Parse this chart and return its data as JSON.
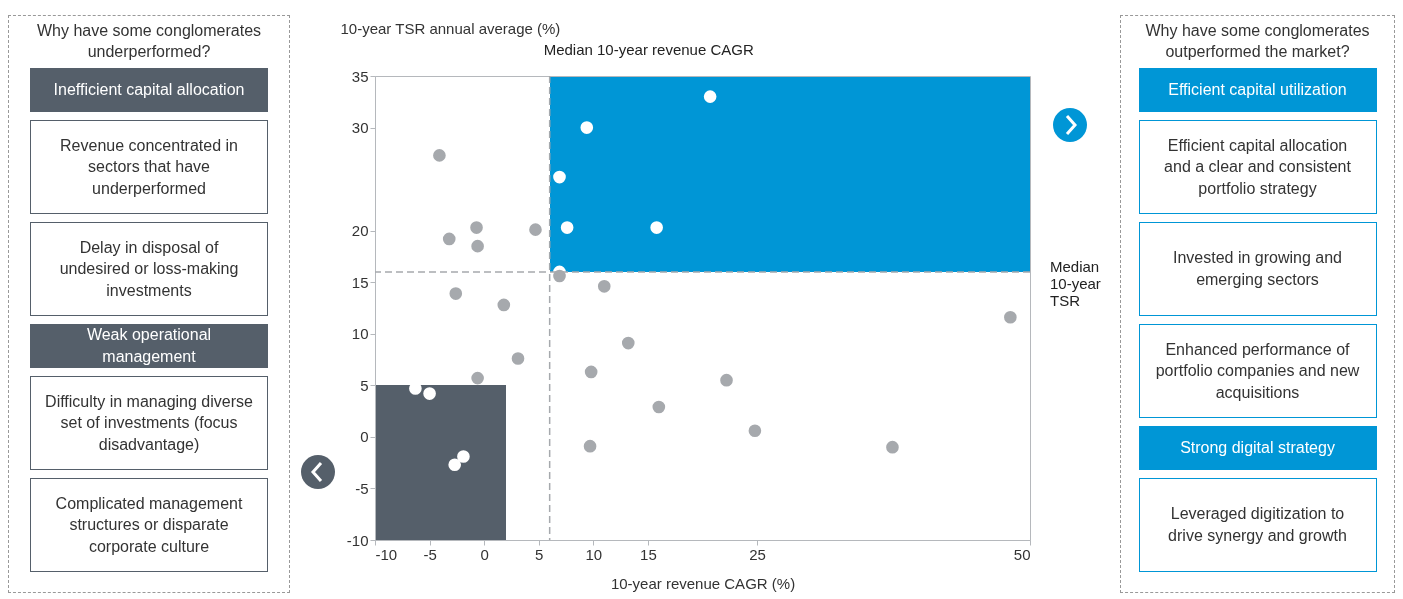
{
  "chart_data": [
    {
      "type": "other",
      "title": "Why have some conglomerates underperformed?",
      "annotations": [
        "Inefficient capital allocation",
        "Revenue concentrated in sectors that have underperformed",
        "Delay in disposal of undesired or loss-making investments",
        "Weak operational management",
        "Difficulty in managing diverse set of investments (focus disadvantage)",
        "Complicated management structures or disparate corporate culture"
      ]
    },
    {
      "type": "scatter",
      "xlabel": "10-year revenue CAGR (%)",
      "ylabel": "10-year TSR annual average (%)",
      "xlim": [
        -10,
        50
      ],
      "xticks": [
        -10,
        -5,
        0,
        5,
        10,
        15,
        25,
        50
      ],
      "ylim": [
        -10,
        35
      ],
      "yticks": [
        -10,
        -5,
        0,
        5,
        10,
        15,
        20,
        30,
        35
      ],
      "series": [
        {
          "type": "scatter",
          "color": "#ffffff",
          "x": [
            20.7,
            9.4,
            6.9,
            7.6,
            15.8,
            6.9,
            -6.3,
            -5.0,
            -2.7,
            -1.9
          ],
          "values": [
            33.0,
            30.0,
            25.2,
            20.3,
            20.3,
            16.0,
            4.7,
            4.2,
            -2.7,
            -1.9
          ]
        },
        {
          "type": "scatter",
          "color": "#a6a9ad",
          "x": [
            -4.1,
            -3.2,
            -0.7,
            -0.6,
            4.7,
            -2.6,
            1.8,
            3.1,
            -0.6,
            6.9,
            11.0,
            13.2,
            9.8,
            9.7,
            16.0,
            22.2,
            24.8,
            37.4,
            48.2
          ],
          "values": [
            27.3,
            19.2,
            20.3,
            18.5,
            20.1,
            13.9,
            12.8,
            7.6,
            5.7,
            15.6,
            14.6,
            9.1,
            6.3,
            -0.9,
            2.9,
            5.5,
            0.6,
            -1.0,
            11.6
          ]
        }
      ],
      "ref_lines": [
        {
          "axis": "x",
          "value": 6,
          "label": "Median 10-year revenue CAGR",
          "color": "#a6a9ad",
          "line_style": "dashed"
        },
        {
          "axis": "y",
          "value": 16,
          "label": "Median 10-year TSR",
          "color": "#a6a9ad",
          "line_style": "dashed"
        }
      ],
      "marker": "circle",
      "grid": false
    },
    {
      "type": "other",
      "title": "Why have some conglomerates outperformed the market?",
      "annotations": [
        "Efficient capital utilization",
        "Efficient capital allocation and a clear and consistent portfolio strategy",
        "Invested in growing and emerging sectors",
        "Enhanced performance of portfolio companies and new acquisitions",
        "Strong digital strategy",
        "Leveraged digitization to drive synergy and growth"
      ]
    }
  ]
}
